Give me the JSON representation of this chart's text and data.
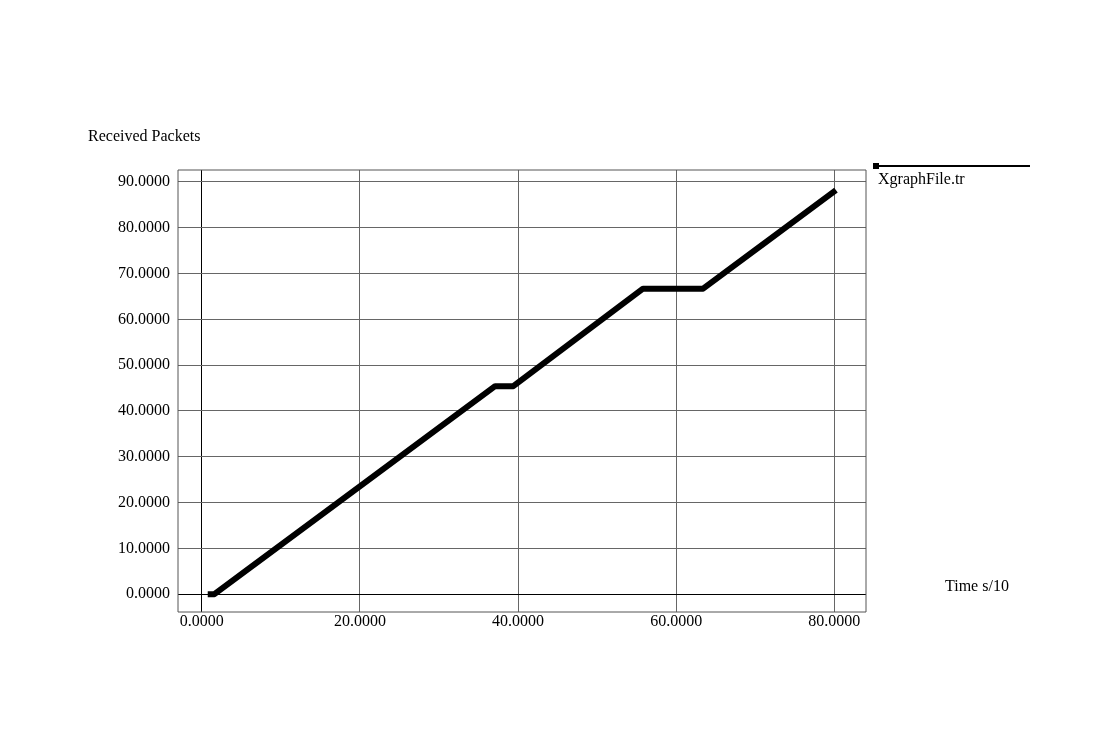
{
  "chart_data": {
    "type": "line",
    "xlabel": "Time s/10",
    "ylabel": "Received Packets",
    "x": [
      0.76,
      1.6,
      37.1,
      39.4,
      55.8,
      63.4,
      80.2
    ],
    "series": [
      {
        "name": "XgraphFile.tr",
        "color": "#000000",
        "values": [
          0,
          0,
          45.4,
          45.4,
          66.7,
          66.7,
          88.2
        ]
      }
    ],
    "xlim": [
      -3,
      84
    ],
    "ylim": [
      -3.9,
      92.6
    ],
    "xticks": [
      {
        "value": 0,
        "label": "0.0000"
      },
      {
        "value": 20,
        "label": "20.0000"
      },
      {
        "value": 40,
        "label": "40.0000"
      },
      {
        "value": 60,
        "label": "60.0000"
      },
      {
        "value": 80,
        "label": "80.0000"
      }
    ],
    "yticks": [
      {
        "value": 0,
        "label": "0.0000"
      },
      {
        "value": 10,
        "label": "10.0000"
      },
      {
        "value": 20,
        "label": "20.0000"
      },
      {
        "value": 30,
        "label": "30.0000"
      },
      {
        "value": 40,
        "label": "40.0000"
      },
      {
        "value": 50,
        "label": "50.0000"
      },
      {
        "value": 60,
        "label": "60.0000"
      },
      {
        "value": 70,
        "label": "70.0000"
      },
      {
        "value": 80,
        "label": "80.0000"
      },
      {
        "value": 90,
        "label": "90.0000"
      }
    ],
    "grid": true,
    "legend": "top right",
    "marker": "none",
    "line_style": "solid"
  }
}
